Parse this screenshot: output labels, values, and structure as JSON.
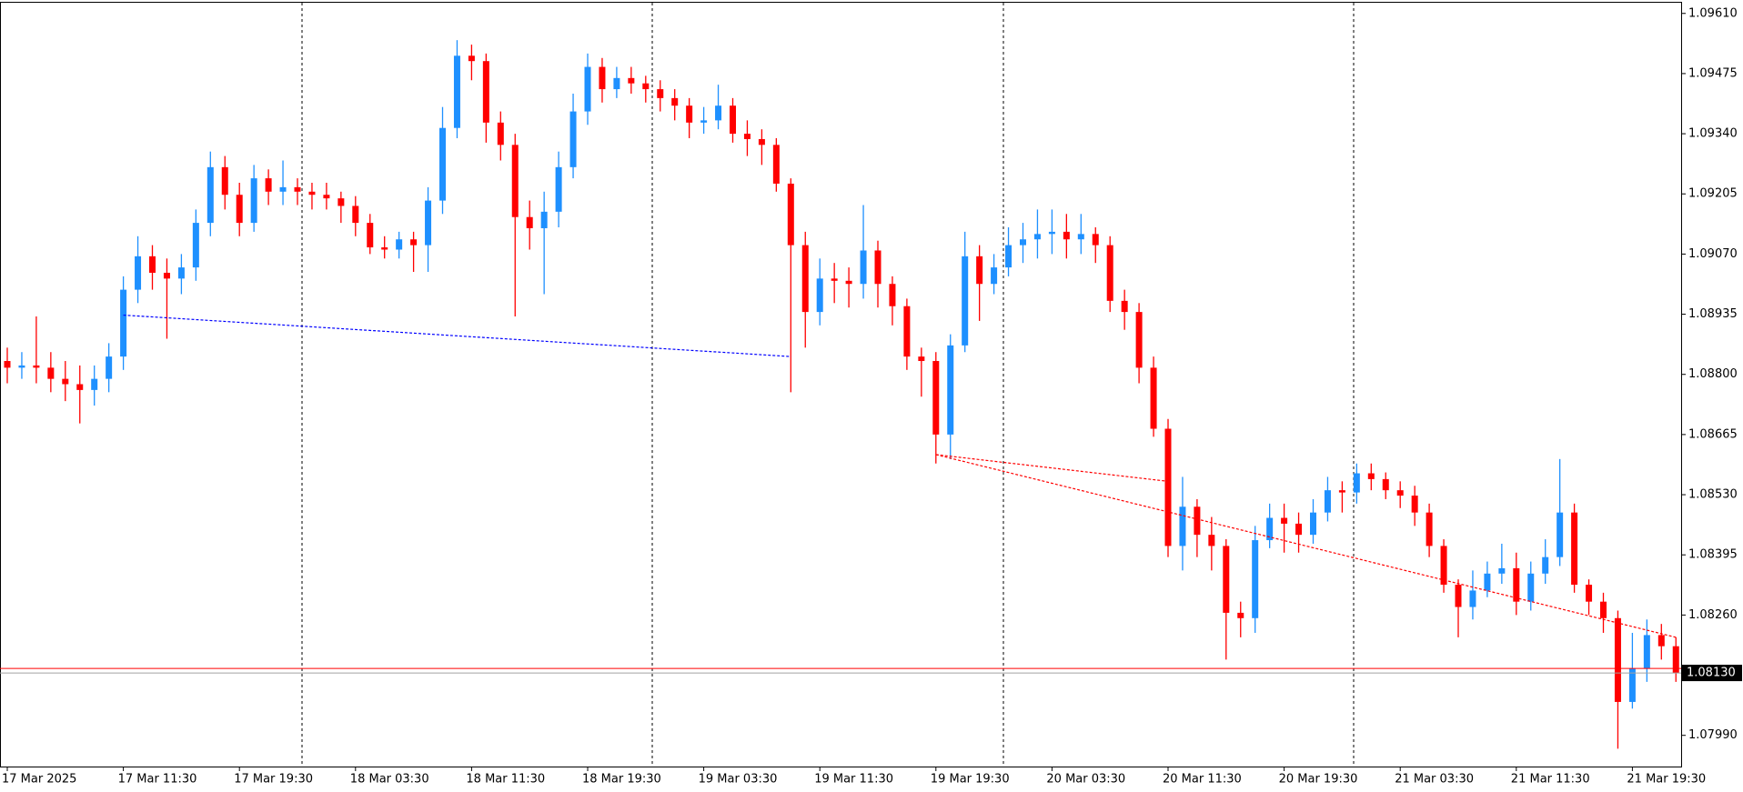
{
  "chart_data": {
    "type": "candlestick",
    "up_color": "#1e90ff",
    "down_color": "#ff0000",
    "categories": [
      "17 Mar 2025",
      null,
      null,
      null,
      null,
      null,
      null,
      null,
      "17 Mar 11:30",
      null,
      null,
      null,
      null,
      null,
      null,
      null,
      "17 Mar 19:30",
      null,
      null,
      null,
      null,
      null,
      null,
      null,
      "18 Mar 03:30",
      null,
      null,
      null,
      null,
      null,
      null,
      null,
      "18 Mar 11:30",
      null,
      null,
      null,
      null,
      null,
      null,
      null,
      "18 Mar 19:30",
      null,
      null,
      null,
      null,
      null,
      null,
      null,
      "19 Mar 03:30",
      null,
      null,
      null,
      null,
      null,
      null,
      null,
      "19 Mar 11:30",
      null,
      null,
      null,
      null,
      null,
      null,
      null,
      "19 Mar 19:30",
      null,
      null,
      null,
      null,
      null,
      null,
      null,
      "20 Mar 03:30",
      null,
      null,
      null,
      null,
      null,
      null,
      null,
      "20 Mar 11:30",
      null,
      null,
      null,
      null,
      null,
      null,
      null,
      "20 Mar 19:30",
      null,
      null,
      null,
      null,
      null,
      null,
      null,
      "21 Mar 03:30",
      null,
      null,
      null,
      null,
      null,
      null,
      null,
      "21 Mar 11:30",
      null,
      null,
      null,
      null,
      null,
      null,
      null,
      "21 Mar 19:30",
      null,
      null,
      null
    ],
    "open": [
      1.0883,
      1.08815,
      1.0882,
      1.08815,
      1.0879,
      1.08778,
      1.08765,
      1.0879,
      1.0884,
      1.0899,
      1.09065,
      1.09028,
      1.09015,
      1.0904,
      1.0914,
      1.09265,
      1.09203,
      1.0914,
      1.0924,
      1.0921,
      1.0922,
      1.0921,
      1.09203,
      1.09195,
      1.09178,
      1.0914,
      1.09085,
      1.0908,
      1.09103,
      1.0909,
      1.0919,
      1.09353,
      1.09515,
      1.09503,
      1.09365,
      1.09315,
      1.09153,
      1.09128,
      1.09165,
      1.09265,
      1.0939,
      1.0949,
      1.0944,
      1.09465,
      1.09453,
      1.0944,
      1.0942,
      1.09403,
      1.09365,
      1.0937,
      1.09403,
      1.0934,
      1.09328,
      1.09315,
      1.09228,
      1.0909,
      1.0894,
      1.09015,
      1.0901,
      1.09003,
      1.09078,
      1.09003,
      1.08953,
      1.0884,
      1.0883,
      1.08665,
      1.08865,
      1.09065,
      1.09003,
      1.0904,
      1.0909,
      1.09103,
      1.09115,
      1.0912,
      1.09103,
      1.09115,
      1.0909,
      1.08965,
      1.0894,
      1.08815,
      1.08678,
      1.08415,
      1.08503,
      1.0844,
      1.08415,
      1.08265,
      1.08253,
      1.08428,
      1.08478,
      1.08465,
      1.0844,
      1.0849,
      1.0854,
      1.08535,
      1.08578,
      1.08565,
      1.0854,
      1.08528,
      1.0849,
      1.08415,
      1.08328,
      1.08278,
      1.08315,
      1.08353,
      1.08365,
      1.0829,
      1.08353,
      1.0839,
      1.0849,
      1.08328,
      1.0829,
      1.08253,
      1.08065,
      1.0814,
      1.08215,
      1.0819
    ],
    "high": [
      1.0886,
      1.0885,
      1.0893,
      1.0885,
      1.0883,
      1.0882,
      1.0882,
      1.0887,
      1.0902,
      1.0911,
      1.0909,
      1.0906,
      1.0907,
      1.0917,
      1.093,
      1.0929,
      1.0923,
      1.0927,
      1.0926,
      1.0928,
      1.0924,
      1.0923,
      1.0923,
      1.0921,
      1.092,
      1.0916,
      1.0911,
      1.0912,
      1.0912,
      1.0922,
      1.094,
      1.0955,
      1.0954,
      1.0952,
      1.0939,
      1.0934,
      1.0919,
      1.0921,
      1.093,
      1.0943,
      1.0952,
      1.0951,
      1.0949,
      1.0949,
      1.0947,
      1.0946,
      1.0944,
      1.0942,
      1.094,
      1.0945,
      1.0942,
      1.0937,
      1.0935,
      1.0933,
      1.0924,
      1.0912,
      1.0906,
      1.0905,
      1.0904,
      1.0918,
      1.091,
      1.0902,
      1.0897,
      1.0886,
      1.0885,
      1.0889,
      1.0912,
      1.0909,
      1.0907,
      1.0913,
      1.0914,
      1.0917,
      1.0917,
      1.0916,
      1.0916,
      1.0913,
      1.0911,
      1.0899,
      1.0896,
      1.0884,
      1.087,
      1.0857,
      1.0852,
      1.0848,
      1.0843,
      1.0829,
      1.0846,
      1.0851,
      1.0851,
      1.0849,
      1.0852,
      1.0857,
      1.0856,
      1.086,
      1.086,
      1.0858,
      1.0856,
      1.0855,
      1.0851,
      1.0843,
      1.0834,
      1.0836,
      1.0838,
      1.0842,
      1.084,
      1.0838,
      1.0843,
      1.0861,
      1.0851,
      1.0834,
      1.0831,
      1.0827,
      1.0822,
      1.0825,
      1.0824,
      1.0821
    ],
    "low": [
      1.0878,
      1.0879,
      1.0878,
      1.0876,
      1.0874,
      1.0869,
      1.0873,
      1.0876,
      1.0881,
      1.0896,
      1.0899,
      1.0888,
      1.0898,
      1.0901,
      1.0911,
      1.0917,
      1.0911,
      1.0912,
      1.0918,
      1.0918,
      1.0918,
      1.0917,
      1.0917,
      1.0914,
      1.0911,
      1.0907,
      1.0906,
      1.0906,
      1.0903,
      1.0903,
      1.0916,
      1.0933,
      1.0946,
      1.0932,
      1.0928,
      1.0893,
      1.0908,
      1.0898,
      1.0913,
      1.0924,
      1.0936,
      1.0941,
      1.0942,
      1.0943,
      1.0941,
      1.0939,
      1.0937,
      1.0933,
      1.0934,
      1.0935,
      1.0932,
      1.0929,
      1.0927,
      1.0921,
      1.0876,
      1.0886,
      1.0891,
      1.0896,
      1.0895,
      1.0897,
      1.0895,
      1.0891,
      1.0881,
      1.0875,
      1.086,
      1.0861,
      1.0885,
      1.0892,
      1.0898,
      1.0902,
      1.0905,
      1.0906,
      1.0907,
      1.0906,
      1.0907,
      1.0905,
      1.0894,
      1.089,
      1.0878,
      1.0866,
      1.0839,
      1.0836,
      1.0839,
      1.0836,
      1.0816,
      1.0821,
      1.0822,
      1.0841,
      1.084,
      1.084,
      1.0842,
      1.0847,
      1.0849,
      1.0851,
      1.0854,
      1.0852,
      1.085,
      1.0846,
      1.0839,
      1.0831,
      1.0821,
      1.0825,
      1.083,
      1.0833,
      1.0826,
      1.0827,
      1.0833,
      1.0837,
      1.0831,
      1.0826,
      1.0822,
      1.0796,
      1.0805,
      1.0811,
      1.0816,
      1.0811
    ],
    "close": [
      1.08815,
      1.0882,
      1.08815,
      1.0879,
      1.08778,
      1.08765,
      1.0879,
      1.0884,
      1.0899,
      1.09065,
      1.09028,
      1.09015,
      1.0904,
      1.0914,
      1.09265,
      1.09203,
      1.0914,
      1.0924,
      1.0921,
      1.0922,
      1.0921,
      1.09203,
      1.09195,
      1.09178,
      1.0914,
      1.09085,
      1.0908,
      1.09103,
      1.0909,
      1.0919,
      1.09353,
      1.09515,
      1.09503,
      1.09365,
      1.09315,
      1.09153,
      1.09128,
      1.09165,
      1.09265,
      1.0939,
      1.0949,
      1.0944,
      1.09465,
      1.09453,
      1.0944,
      1.0942,
      1.09403,
      1.09365,
      1.0937,
      1.09403,
      1.0934,
      1.09328,
      1.09315,
      1.09228,
      1.0909,
      1.0894,
      1.09015,
      1.0901,
      1.09003,
      1.09078,
      1.09003,
      1.08953,
      1.0884,
      1.0883,
      1.08665,
      1.08865,
      1.09065,
      1.09003,
      1.0904,
      1.0909,
      1.09103,
      1.09115,
      1.0912,
      1.09103,
      1.09115,
      1.0909,
      1.08965,
      1.0894,
      1.08815,
      1.08678,
      1.08415,
      1.08503,
      1.0844,
      1.08415,
      1.08265,
      1.08253,
      1.08428,
      1.08478,
      1.08465,
      1.0844,
      1.0849,
      1.0854,
      1.08535,
      1.08578,
      1.08565,
      1.0854,
      1.08528,
      1.0849,
      1.08415,
      1.08328,
      1.08278,
      1.08315,
      1.08353,
      1.08365,
      1.0829,
      1.08353,
      1.0839,
      1.0849,
      1.08328,
      1.0829,
      1.08253,
      1.08065,
      1.0814,
      1.08215,
      1.0819,
      1.0813
    ],
    "ylim": [
      1.0792,
      1.09635
    ],
    "yticks": [
      {
        "value": 1.0961,
        "label": "1.09610"
      },
      1.09475,
      {
        "value": 1.0934,
        "label": "1.09340"
      },
      1.09205,
      {
        "value": 1.0907,
        "label": "1.09070"
      },
      1.08935,
      {
        "value": 1.088,
        "label": "1.08800"
      },
      1.08665,
      {
        "value": 1.0853,
        "label": "1.08530"
      },
      1.08395,
      {
        "value": 1.0826,
        "label": "1.08260"
      },
      {
        "value": 1.0799,
        "label": "1.07990"
      }
    ],
    "trendlines": [
      {
        "color": "#0000ff",
        "x": [
          8,
          54
        ],
        "y": [
          1.08933,
          1.0884
        ]
      },
      {
        "color": "#ff0000",
        "x": [
          64,
          80
        ],
        "y": [
          1.0862,
          1.0856
        ]
      },
      {
        "color": "#ff0000",
        "x": [
          64,
          115
        ],
        "y": [
          1.0862,
          1.0821
        ]
      }
    ],
    "ask": 1.0814,
    "ask_color": "#ff0000",
    "bid": {
      "value": 1.0813,
      "label": "1.08130"
    },
    "bid_color": "#a0a0a0"
  }
}
